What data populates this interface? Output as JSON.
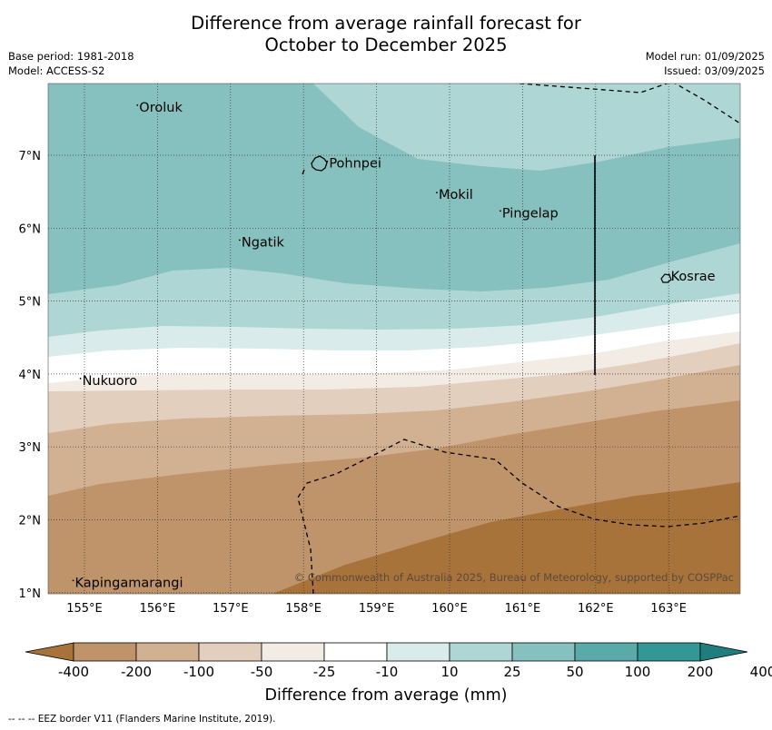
{
  "header": {
    "title_line1": "Difference from average rainfall forecast for",
    "title_line2": "October to December 2025",
    "base_period": "Base period: 1981-2018",
    "model": "Model: ACCESS-S2",
    "model_run": "Model run: 01/09/2025",
    "issued": "Issued: 03/09/2025"
  },
  "map": {
    "lon_ticks": [
      "155°E",
      "156°E",
      "157°E",
      "158°E",
      "159°E",
      "160°E",
      "161°E",
      "162°E",
      "163°E"
    ],
    "lat_ticks": [
      "7°N",
      "6°N",
      "5°N",
      "4°N",
      "3°N",
      "2°N",
      "1°N"
    ],
    "places": [
      {
        "name": "Oroluk",
        "lon": 155.75,
        "lat": 7.6
      },
      {
        "name": "Pohnpei",
        "lon": 158.35,
        "lat": 6.83
      },
      {
        "name": "Mokil",
        "lon": 159.85,
        "lat": 6.4
      },
      {
        "name": "Pingelap",
        "lon": 160.72,
        "lat": 6.15
      },
      {
        "name": "Ngatik",
        "lon": 157.15,
        "lat": 5.75
      },
      {
        "name": "Kosrae",
        "lon": 163.03,
        "lat": 5.28
      },
      {
        "name": "Nukuoro",
        "lon": 154.97,
        "lat": 3.85
      },
      {
        "name": "Kapingamarangi",
        "lon": 154.87,
        "lat": 1.08
      }
    ],
    "copyright": "© Commonwealth of Australia 2025, Bureau of Meteorology, supported by COSPPac"
  },
  "colorbar": {
    "labels": [
      "-400",
      "-200",
      "-100",
      "-50",
      "-25",
      "-10",
      "10",
      "25",
      "50",
      "100",
      "200",
      "400"
    ],
    "colors": [
      "#a8733b",
      "#c0946a",
      "#d2b193",
      "#e2cfbe",
      "#f2ece5",
      "#ffffff",
      "#d9ebea",
      "#aed6d5",
      "#86c1c0",
      "#5aaaa9",
      "#339796",
      "#1f7d7d"
    ],
    "title": "Difference from average (mm)"
  },
  "footnote": "--  --  -- EEZ border V11 (Flanders Marine Institute, 2019)."
}
